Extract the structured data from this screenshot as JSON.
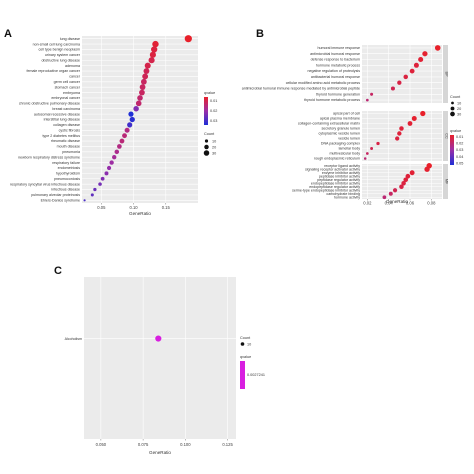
{
  "chart_data": [
    {
      "panel": "A",
      "type": "scatter",
      "title": "",
      "xlabel": "GeneRatio",
      "ylabel": "",
      "xlim": [
        0.02,
        0.2
      ],
      "xticks": [
        "0.05",
        "0.10",
        "0.15"
      ],
      "xtick_values": [
        0.05,
        0.1,
        0.15
      ],
      "grid": true,
      "legend": {
        "color_title": "qvalue",
        "color_ticks": [
          "0.01",
          "0.02",
          "0.03"
        ],
        "size_title": "Count",
        "size_ticks": [
          "10",
          "20",
          "30"
        ],
        "placement": "right"
      },
      "categories": [
        "lung disease",
        "non-small cell lung carcinoma",
        "cell type benign neoplasm",
        "urinary system cancer",
        "obstructive lung disease",
        "adenoma",
        "female reproductive organ cancer",
        "cancer",
        "germ cell cancer",
        "stomach cancer",
        "embryoma",
        "embryonal cancer",
        "chronic obstructive pulmonary disease",
        "breast carcinoma",
        "autosomal recessive disease",
        "interstitial lung disease",
        "collagen disease",
        "cystic fibrosis",
        "type 2 diabetes mellitus",
        "rheumatic disease",
        "mouth disease",
        "pneumonia",
        "newborn respiratory distress syndrome",
        "respiratory failure",
        "endometriosis",
        "hypothyroidism",
        "pneumoconiosis",
        "respiratory syncytial virus infectious disease",
        "infectious disease",
        "pulmonary alveolar proteinosis",
        "Ehlers-Danlos syndrome"
      ],
      "x": [
        0.185,
        0.134,
        0.132,
        0.13,
        0.128,
        0.122,
        0.12,
        0.118,
        0.116,
        0.114,
        0.113,
        0.11,
        0.108,
        0.104,
        0.096,
        0.098,
        0.094,
        0.09,
        0.086,
        0.082,
        0.078,
        0.074,
        0.07,
        0.066,
        0.062,
        0.058,
        0.052,
        0.048,
        0.04,
        0.036,
        0.024
      ],
      "counts": [
        33,
        26,
        25,
        24,
        24,
        23,
        22,
        22,
        21,
        21,
        21,
        20,
        20,
        19,
        17,
        18,
        17,
        16,
        15,
        15,
        14,
        13,
        12,
        12,
        11,
        10,
        9,
        8,
        7,
        6,
        3
      ],
      "qvalues": [
        0.008,
        0.009,
        0.01,
        0.01,
        0.011,
        0.011,
        0.012,
        0.012,
        0.013,
        0.013,
        0.013,
        0.014,
        0.014,
        0.022,
        0.031,
        0.03,
        0.028,
        0.016,
        0.015,
        0.015,
        0.016,
        0.017,
        0.018,
        0.019,
        0.02,
        0.021,
        0.022,
        0.023,
        0.024,
        0.025,
        0.027
      ]
    },
    {
      "panel": "B",
      "type": "scatter",
      "title": "",
      "xlabel": "GeneRatio",
      "ylabel": "",
      "xlim": [
        0.015,
        0.09
      ],
      "xticks": [
        "0.02",
        "0.04",
        "0.06",
        "0.08"
      ],
      "xtick_values": [
        0.02,
        0.04,
        0.06,
        0.08
      ],
      "grid": true,
      "facets": [
        "BP",
        "CC",
        "MF"
      ],
      "legend": {
        "color_title": "qvalue",
        "color_ticks": [
          "0.01",
          "0.02",
          "0.03",
          "0.04",
          "0.05"
        ],
        "size_title": "Count",
        "size_ticks": [
          "10",
          "20",
          "30"
        ],
        "placement": "right"
      },
      "groups": [
        {
          "facet": "BP",
          "categories": [
            "humoral immune response",
            "antimicrobial humoral response",
            "defense response to bacterium",
            "hormone metabolic process",
            "negative regulation of proteolysis",
            "antibacterial humoral response",
            "cellular modified amino acid metabolic process",
            "antimicrobial humoral immune response mediated by antimicrobial peptide",
            "thyroid hormone generation",
            "thyroid hormone metabolic process"
          ],
          "x": [
            0.086,
            0.074,
            0.07,
            0.066,
            0.062,
            0.056,
            0.05,
            0.044,
            0.024,
            0.02
          ],
          "counts": [
            34,
            30,
            28,
            27,
            25,
            22,
            20,
            18,
            10,
            8
          ],
          "qvalues": [
            0.005,
            0.006,
            0.007,
            0.008,
            0.008,
            0.009,
            0.01,
            0.012,
            0.015,
            0.018
          ]
        },
        {
          "facet": "CC",
          "categories": [
            "apical part of cell",
            "apical plasma membrane",
            "collagen-containing extracellular matrix",
            "secretory granule lumen",
            "cytoplasmic vesicle lumen",
            "vesicle lumen",
            "DNA packaging complex",
            "lamellar body",
            "multivesicular body",
            "rough endoplasmic reticulum"
          ],
          "x": [
            0.072,
            0.064,
            0.06,
            0.052,
            0.05,
            0.048,
            0.03,
            0.024,
            0.02,
            0.018
          ],
          "counts": [
            30,
            27,
            25,
            22,
            21,
            20,
            12,
            9,
            8,
            7
          ],
          "qvalues": [
            0.005,
            0.006,
            0.007,
            0.008,
            0.008,
            0.009,
            0.01,
            0.012,
            0.015,
            0.018
          ]
        },
        {
          "facet": "MF",
          "categories": [
            "receptor ligand activity",
            "signaling receptor activator activity",
            "enzyme inhibitor activity",
            "peptidase inhibitor activity",
            "peptidase regulator activity",
            "endopeptidase inhibitor activity",
            "endopeptidase regulator activity",
            "serine-type endopeptidase inhibitor activity",
            "carbohydrate binding",
            "hormone activity"
          ],
          "x": [
            0.078,
            0.076,
            0.062,
            0.058,
            0.056,
            0.054,
            0.052,
            0.046,
            0.042,
            0.036
          ],
          "counts": [
            32,
            31,
            26,
            24,
            23,
            22,
            22,
            19,
            17,
            15
          ],
          "qvalues": [
            0.005,
            0.006,
            0.007,
            0.008,
            0.008,
            0.009,
            0.01,
            0.012,
            0.015,
            0.018
          ]
        }
      ]
    },
    {
      "panel": "C",
      "type": "scatter",
      "title": "",
      "xlabel": "GeneRatio",
      "ylabel": "",
      "xlim": [
        0.04,
        0.13
      ],
      "xticks": [
        "0.050",
        "0.075",
        "0.100",
        "0.125"
      ],
      "xtick_values": [
        0.05,
        0.075,
        0.1,
        0.125
      ],
      "grid": true,
      "legend": {
        "color_title": "qvalue",
        "color_ticks": [
          "0.0027241"
        ],
        "size_title": "Count",
        "size_ticks": [
          "10"
        ],
        "placement": "right"
      },
      "categories": [
        "Alcoholism"
      ],
      "x": [
        0.084
      ],
      "counts": [
        10
      ],
      "qvalues": [
        0.0027241
      ]
    }
  ],
  "panel_letters": [
    "A",
    "B",
    "C"
  ],
  "colors": {
    "panel_bg": "#ebebeb",
    "low_q": "#e8202a",
    "mid_q": "#9b2fa8",
    "high_q": "#1f2fd6",
    "single": "#d81fe0"
  }
}
